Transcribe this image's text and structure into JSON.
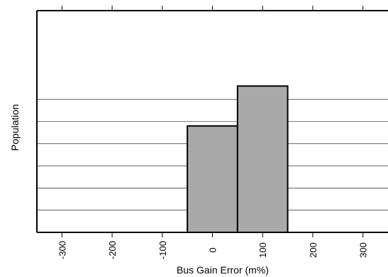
{
  "chart_data": {
    "type": "bar",
    "subtype": "histogram",
    "title": "",
    "xlabel": "Bus Gain Error (m%)",
    "ylabel": "Population",
    "xlim": [
      -350,
      350
    ],
    "ylim": [
      0,
      100
    ],
    "xticks": [
      -300,
      -200,
      -100,
      0,
      100,
      200,
      300
    ],
    "xtick_labels": [
      "-300",
      "-200",
      "-100",
      "0",
      "100",
      "200",
      "300"
    ],
    "bin_width": 100,
    "bins": [
      {
        "start": -50,
        "end": 50,
        "value": 48
      },
      {
        "start": 50,
        "end": 150,
        "value": 66
      }
    ],
    "y_gridlines": [
      10,
      20,
      30,
      40,
      50,
      60
    ],
    "grid": true,
    "legend": "none",
    "bar_fill": "#a9a9a9",
    "bar_edge": "#000000"
  }
}
